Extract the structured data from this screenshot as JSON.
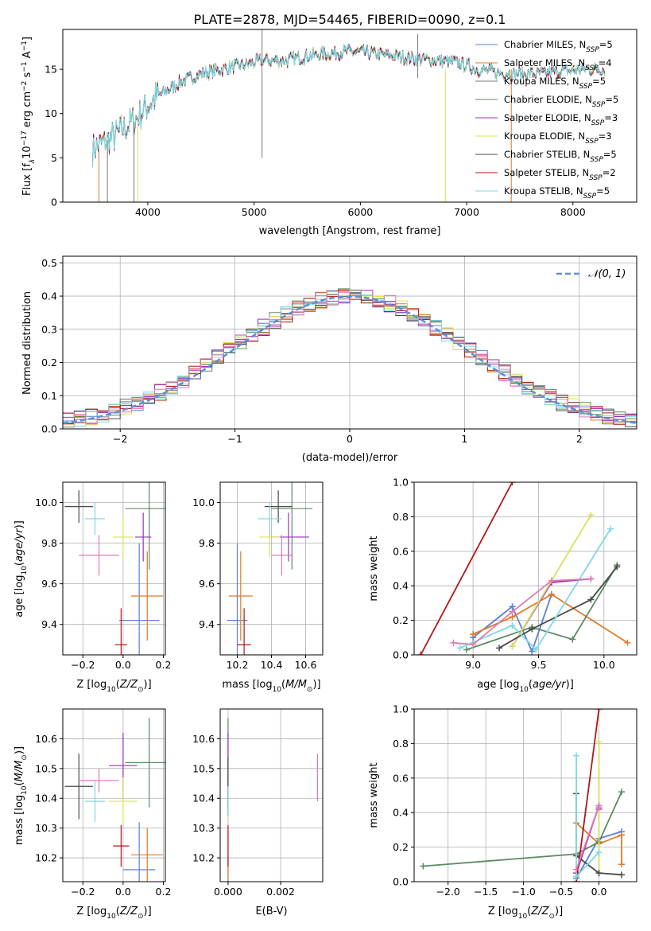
{
  "title": "PLATE=2878, MJD=54465, FIBERID=0090, z=0.1",
  "colors": {
    "Chabrier MILES": "#5b7fd6",
    "Salpeter MILES": "#e07b28",
    "Kroupa MILES": "#7a7a7a",
    "Chabrier ELODIE": "#5b8a62",
    "Salpeter ELODIE": "#9a2fc0",
    "Kroupa ELODIE": "#d9e05a",
    "Chabrier STELIB": "#4a4a4a",
    "Salpeter STELIB": "#b01818",
    "Kroupa STELIB": "#7fd8e0",
    "Extra": "#e07ab0",
    "Normal": "#5b8ed6"
  },
  "chart_data": [
    {
      "id": "spectrum",
      "type": "line",
      "xlabel": "wavelength [Angstrom, rest frame]",
      "ylabel": "Flux [f",
      "xlim": [
        3200,
        8600
      ],
      "ylim": [
        0,
        19.5
      ],
      "xticks": [
        "4000",
        "5000",
        "6000",
        "7000",
        "8000"
      ],
      "yticks": [
        "0",
        "5",
        "10",
        "15"
      ],
      "legend_placement": "top-right",
      "continuum": {
        "x": [
          3480,
          3700,
          3900,
          4000,
          4100,
          4300,
          4500,
          4700,
          4900,
          5100,
          5300,
          5500,
          5700,
          5900,
          6100,
          6300,
          6500,
          6700,
          6900,
          7100,
          7300,
          7500,
          7700,
          7900,
          8100,
          8300
        ],
        "y": [
          6,
          7.5,
          9.5,
          11,
          12,
          13.5,
          14.5,
          15,
          15.5,
          16,
          16,
          16.5,
          16.8,
          17,
          16.8,
          16.5,
          16.2,
          16,
          15.8,
          15,
          14.6,
          14.5,
          14.5,
          14.8,
          15,
          15
        ]
      },
      "series": [
        {
          "name": "Chabrier MILES",
          "nssp": "5"
        },
        {
          "name": "Salpeter MILES",
          "nssp": "4"
        },
        {
          "name": "Kroupa MILES",
          "nssp": "5"
        },
        {
          "name": "Chabrier ELODIE",
          "nssp": "5"
        },
        {
          "name": "Salpeter ELODIE",
          "nssp": "3"
        },
        {
          "name": "Kroupa ELODIE",
          "nssp": "3"
        },
        {
          "name": "Chabrier STELIB",
          "nssp": "5"
        },
        {
          "name": "Salpeter STELIB",
          "nssp": "2"
        },
        {
          "name": "Kroupa STELIB",
          "nssp": "5"
        }
      ]
    },
    {
      "id": "residuals",
      "type": "area",
      "xlabel": "(data-model)/error",
      "ylabel": "Normed distribution",
      "xlim": [
        -2.5,
        2.5
      ],
      "ylim": [
        0,
        0.52
      ],
      "xticks": [
        "−2",
        "−1",
        "0",
        "1",
        "2"
      ],
      "yticks": [
        "0.0",
        "0.1",
        "0.2",
        "0.3",
        "0.4",
        "0.5"
      ],
      "legend": "𝒩(0, 1)",
      "legend_placement": "top-right"
    },
    {
      "id": "age_vs_Z",
      "type": "scatter",
      "xlabel": "Z [log",
      "ylabel": "age  [log",
      "xlim": [
        -0.3,
        0.21
      ],
      "ylim": [
        9.25,
        10.1
      ],
      "xticks": [
        "−0.2",
        "0.0",
        "0.2"
      ],
      "yticks": [
        "9.4",
        "9.6",
        "9.8",
        "10.0"
      ],
      "points": [
        {
          "s": "Chabrier MILES",
          "x": 0.08,
          "y": 9.42,
          "ex": 0.1,
          "ey": 0.38
        },
        {
          "s": "Salpeter MILES",
          "x": 0.12,
          "y": 9.54,
          "ex": 0.08,
          "ey": 0.22
        },
        {
          "s": "Chabrier ELODIE",
          "x": 0.13,
          "y": 9.97,
          "ex": 0.12,
          "ey": 0.3
        },
        {
          "s": "Salpeter ELODIE",
          "x": 0.1,
          "y": 9.83,
          "ex": 0.04,
          "ey": 0.12
        },
        {
          "s": "Kroupa ELODIE",
          "x": 0.0,
          "y": 9.83,
          "ex": 0.05,
          "ey": 0.1
        },
        {
          "s": "Chabrier STELIB",
          "x": -0.22,
          "y": 9.98,
          "ex": 0.07,
          "ey": 0.08
        },
        {
          "s": "Salpeter STELIB",
          "x": -0.01,
          "y": 9.3,
          "ex": 0.03,
          "ey": 0.18
        },
        {
          "s": "Kroupa STELIB",
          "x": -0.14,
          "y": 9.92,
          "ex": 0.05,
          "ey": 0.08
        },
        {
          "s": "Extra",
          "x": -0.12,
          "y": 9.74,
          "ex": 0.1,
          "ey": 0.1
        }
      ]
    },
    {
      "id": "age_vs_mass",
      "type": "scatter",
      "xlabel": "mass [log",
      "ylabel": "",
      "xlim": [
        10.1,
        10.7
      ],
      "ylim": [
        9.25,
        10.1
      ],
      "xticks": [
        "10.2",
        "10.4",
        "10.6"
      ],
      "yticks": [
        "9.4",
        "9.6",
        "9.8",
        "10.0"
      ],
      "points": [
        {
          "s": "Chabrier MILES",
          "x": 10.2,
          "y": 9.42,
          "ex": 0.06,
          "ey": 0.38
        },
        {
          "s": "Salpeter MILES",
          "x": 10.22,
          "y": 9.54,
          "ex": 0.07,
          "ey": 0.22
        },
        {
          "s": "Chabrier ELODIE",
          "x": 10.52,
          "y": 9.97,
          "ex": 0.12,
          "ey": 0.3
        },
        {
          "s": "Salpeter ELODIE",
          "x": 10.5,
          "y": 9.83,
          "ex": 0.12,
          "ey": 0.12
        },
        {
          "s": "Kroupa ELODIE",
          "x": 10.39,
          "y": 9.83,
          "ex": 0.06,
          "ey": 0.1
        },
        {
          "s": "Chabrier STELIB",
          "x": 10.44,
          "y": 9.98,
          "ex": 0.08,
          "ey": 0.08
        },
        {
          "s": "Salpeter STELIB",
          "x": 10.24,
          "y": 9.3,
          "ex": 0.04,
          "ey": 0.18
        },
        {
          "s": "Kroupa STELIB",
          "x": 10.39,
          "y": 9.92,
          "ex": 0.07,
          "ey": 0.08
        },
        {
          "s": "Extra",
          "x": 10.46,
          "y": 9.74,
          "ex": 0.06,
          "ey": 0.1
        }
      ]
    },
    {
      "id": "weight_vs_age",
      "type": "line",
      "xlabel": "age  [log",
      "ylabel": "mass weight",
      "xlim": [
        8.55,
        10.25
      ],
      "ylim": [
        0,
        1
      ],
      "xticks": [
        "9.0",
        "9.5",
        "10.0"
      ],
      "yticks": [
        "0.0",
        "0.2",
        "0.4",
        "0.6",
        "0.8",
        "1.0"
      ],
      "series": [
        {
          "name": "Chabrier MILES",
          "x": [
            9.0,
            9.3,
            9.45,
            9.6
          ],
          "y": [
            0.1,
            0.28,
            0.02,
            0.35
          ]
        },
        {
          "name": "Salpeter MILES",
          "x": [
            9.0,
            9.3,
            9.6,
            10.18
          ],
          "y": [
            0.12,
            0.22,
            0.35,
            0.07
          ]
        },
        {
          "name": "Chabrier ELODIE",
          "x": [
            8.95,
            9.45,
            9.76,
            10.1
          ],
          "y": [
            0.03,
            0.16,
            0.09,
            0.52
          ]
        },
        {
          "name": "Salpeter ELODIE",
          "x": [
            9.3,
            9.6,
            9.9
          ],
          "y": [
            0.05,
            0.42,
            0.44
          ]
        },
        {
          "name": "Kroupa ELODIE",
          "x": [
            9.3,
            9.9
          ],
          "y": [
            0.05,
            0.81
          ]
        },
        {
          "name": "Chabrier STELIB",
          "x": [
            9.2,
            9.45,
            9.9,
            10.1
          ],
          "y": [
            0.04,
            0.15,
            0.32,
            0.51
          ]
        },
        {
          "name": "Salpeter STELIB",
          "x": [
            8.6,
            9.3
          ],
          "y": [
            0.0,
            1.0
          ]
        },
        {
          "name": "Kroupa STELIB",
          "x": [
            8.9,
            9.3,
            9.48,
            10.05
          ],
          "y": [
            0.04,
            0.17,
            0.03,
            0.73
          ]
        },
        {
          "name": "Extra",
          "x": [
            8.85,
            9.0,
            9.3,
            9.6,
            9.9
          ],
          "y": [
            0.07,
            0.06,
            0.25,
            0.43,
            0.44
          ]
        }
      ]
    },
    {
      "id": "mass_vs_Z",
      "type": "scatter",
      "xlabel": "Z [log",
      "ylabel": "mass [log",
      "xlim": [
        -0.3,
        0.21
      ],
      "ylim": [
        10.12,
        10.7
      ],
      "xticks": [
        "−0.2",
        "0.0",
        "0.2"
      ],
      "yticks": [
        "10.2",
        "10.3",
        "10.4",
        "10.5",
        "10.6"
      ],
      "points": [
        {
          "s": "Chabrier MILES",
          "x": 0.08,
          "y": 10.16,
          "ex": 0.08,
          "ey": 0.16
        },
        {
          "s": "Salpeter MILES",
          "x": 0.12,
          "y": 10.21,
          "ex": 0.08,
          "ey": 0.09
        },
        {
          "s": "Chabrier ELODIE",
          "x": 0.13,
          "y": 10.52,
          "ex": 0.12,
          "ey": 0.15
        },
        {
          "s": "Salpeter ELODIE",
          "x": 0.0,
          "y": 10.51,
          "ex": 0.07,
          "ey": 0.11
        },
        {
          "s": "Kroupa ELODIE",
          "x": 0.0,
          "y": 10.39,
          "ex": 0.07,
          "ey": 0.08
        },
        {
          "s": "Chabrier STELIB",
          "x": -0.22,
          "y": 10.44,
          "ex": 0.07,
          "ey": 0.11
        },
        {
          "s": "Salpeter STELIB",
          "x": -0.01,
          "y": 10.24,
          "ex": 0.04,
          "ey": 0.07
        },
        {
          "s": "Kroupa STELIB",
          "x": -0.14,
          "y": 10.39,
          "ex": 0.05,
          "ey": 0.07
        },
        {
          "s": "Extra",
          "x": -0.12,
          "y": 10.46,
          "ex": 0.1,
          "ey": 0.04
        }
      ]
    },
    {
      "id": "mass_vs_EBV",
      "type": "scatter",
      "xlabel": "E(B-V)",
      "ylabel": "",
      "xlim": [
        -0.0003,
        0.0036
      ],
      "ylim": [
        10.12,
        10.7
      ],
      "xticks": [
        "0.000",
        "0.002"
      ],
      "yticks": [
        "10.2",
        "10.3",
        "10.4",
        "10.5",
        "10.6"
      ],
      "points": [
        {
          "s": "Chabrier MILES",
          "x": 0.0,
          "y": 10.16,
          "ex": 0.0,
          "ey": 0.05
        },
        {
          "s": "Salpeter MILES",
          "x": 0.0,
          "y": 10.21,
          "ex": 0.0,
          "ey": 0.08
        },
        {
          "s": "Chabrier ELODIE",
          "x": 0.0,
          "y": 10.52,
          "ex": 0.0,
          "ey": 0.15
        },
        {
          "s": "Salpeter ELODIE",
          "x": 0.0,
          "y": 10.51,
          "ex": 0.0,
          "ey": 0.11
        },
        {
          "s": "Kroupa ELODIE",
          "x": 0.0,
          "y": 10.39,
          "ex": 0.0,
          "ey": 0.06
        },
        {
          "s": "Chabrier STELIB",
          "x": 0.0,
          "y": 10.44,
          "ex": 0.0,
          "ey": 0.1
        },
        {
          "s": "Salpeter STELIB",
          "x": 0.0,
          "y": 10.24,
          "ex": 0.0,
          "ey": 0.07
        },
        {
          "s": "Kroupa STELIB",
          "x": 0.0,
          "y": 10.39,
          "ex": 0.0,
          "ey": 0.05
        },
        {
          "s": "Extra",
          "x": 0.0034,
          "y": 10.47,
          "ex": 0.0,
          "ey": 0.08
        }
      ]
    },
    {
      "id": "weight_vs_Z",
      "type": "line",
      "xlabel": "Z [log",
      "ylabel": "mass weight",
      "xlim": [
        -2.45,
        0.5
      ],
      "ylim": [
        0,
        1
      ],
      "xticks": [
        "−2.0",
        "−1.5",
        "−1.0",
        "−0.5",
        "0.0"
      ],
      "yticks": [
        "0.0",
        "0.2",
        "0.4",
        "0.6",
        "0.8",
        "1.0"
      ],
      "series": [
        {
          "name": "Chabrier MILES",
          "x": [
            -0.3,
            0.0,
            0.3
          ],
          "y": [
            0.02,
            0.25,
            0.29
          ]
        },
        {
          "name": "Salpeter MILES",
          "x": [
            -0.3,
            0.0,
            0.3,
            0.3
          ],
          "y": [
            0.34,
            0.22,
            0.27,
            0.1
          ]
        },
        {
          "name": "Chabrier ELODIE",
          "x": [
            -2.33,
            -0.3,
            0.0,
            0.3
          ],
          "y": [
            0.09,
            0.16,
            0.23,
            0.52
          ]
        },
        {
          "name": "Salpeter ELODIE",
          "x": [
            -0.3,
            0.0,
            0.0
          ],
          "y": [
            0.05,
            0.44,
            0.42
          ]
        },
        {
          "name": "Kroupa ELODIE",
          "x": [
            0.0,
            0.0
          ],
          "y": [
            0.81,
            0.05
          ]
        },
        {
          "name": "Chabrier STELIB",
          "x": [
            -0.3,
            -0.3,
            0.0,
            0.3
          ],
          "y": [
            0.51,
            0.15,
            0.05,
            0.04
          ]
        },
        {
          "name": "Salpeter STELIB",
          "x": [
            -0.3,
            0.0
          ],
          "y": [
            0.0,
            1.0
          ]
        },
        {
          "name": "Kroupa STELIB",
          "x": [
            -0.3,
            -0.3,
            0.0
          ],
          "y": [
            0.73,
            0.03,
            0.17
          ]
        },
        {
          "name": "Extra",
          "x": [
            -0.3,
            0.0,
            0.0
          ],
          "y": [
            0.07,
            0.44,
            0.43
          ]
        }
      ]
    }
  ]
}
